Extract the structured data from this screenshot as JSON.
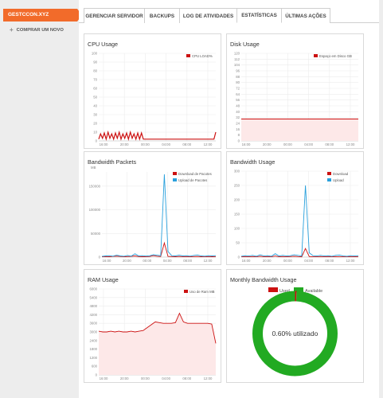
{
  "sidebar": {
    "domain": "GESTCCON.XYZ",
    "buy_label": "COMPRAR UM NOVO"
  },
  "tabs": [
    {
      "label": "GERENCIAR SERVIDOR"
    },
    {
      "label": "BACKUPS"
    },
    {
      "label": "LOG DE ATIVIDADES"
    },
    {
      "label": "ESTATÍSTICAS"
    },
    {
      "label": "ÚLTIMAS AÇÕES"
    }
  ],
  "active_tab": "ESTATÍSTICAS",
  "colors": {
    "accent": "#f26b2a",
    "red_series": "#cc1111",
    "blue_series": "#29a0dc",
    "used": "#cc1111",
    "available": "#22aa22"
  },
  "chart_data": [
    {
      "id": "cpu",
      "type": "line",
      "title": "CPU Usage",
      "legend": [
        "CPU LOAD%"
      ],
      "xticks": [
        "16:00",
        "20:00",
        "00:00",
        "04:00",
        "08:00",
        "12:00"
      ],
      "yticks": [
        "0",
        "10",
        "20",
        "30",
        "40",
        "50",
        "60",
        "70",
        "80",
        "90",
        "100"
      ],
      "ylim": [
        0,
        100
      ],
      "series": [
        {
          "name": "CPU LOAD%",
          "color": "#cc1111",
          "values": [
            2,
            8,
            3,
            9,
            2,
            10,
            3,
            8,
            2,
            9,
            3,
            10,
            2,
            8,
            3,
            9,
            2,
            10,
            3,
            8,
            2,
            9,
            2,
            9,
            2,
            2,
            2,
            2,
            2,
            2,
            2,
            2,
            2,
            2,
            2,
            2,
            2,
            2,
            2,
            2,
            2,
            2,
            2,
            2,
            2,
            2,
            2,
            2,
            2,
            2,
            2,
            2,
            2,
            2,
            2,
            2,
            2,
            2,
            2,
            2,
            2,
            2,
            2,
            10
          ]
        }
      ]
    },
    {
      "id": "disk",
      "type": "line",
      "title": "Disk Usage",
      "legend": [
        "Espaço em Disco GB"
      ],
      "xticks": [
        "16:00",
        "20:00",
        "00:00",
        "04:00",
        "08:00",
        "12:00"
      ],
      "yticks": [
        "0",
        "8",
        "16",
        "24",
        "32",
        "40",
        "48",
        "56",
        "64",
        "72",
        "80",
        "88",
        "96",
        "104",
        "112",
        "120"
      ],
      "ylim": [
        0,
        120
      ],
      "series": [
        {
          "name": "Espaço em Disco GB",
          "color": "#cc1111",
          "values": [
            30,
            30,
            30,
            30,
            30,
            30,
            30,
            30,
            30,
            30,
            30,
            30
          ]
        }
      ]
    },
    {
      "id": "bandwidth-packets",
      "type": "line",
      "title": "Bandwidth Packets",
      "ylabel": "MB",
      "legend": [
        "Download de Pacotes",
        "Upload de Pacotes"
      ],
      "xticks": [
        "16:00",
        "20:00",
        "00:00",
        "04:00",
        "08:00",
        "12:00"
      ],
      "yticks": [
        "0",
        "50000",
        "100000",
        "150000"
      ],
      "ylim": [
        0,
        180000
      ],
      "series": [
        {
          "name": "Download de Pacotes",
          "color": "#cc1111",
          "values": [
            800,
            1200,
            900,
            1500,
            2000,
            1300,
            900,
            1100,
            1600,
            2500,
            1200,
            900,
            1000,
            1400,
            3000,
            1800,
            1200,
            30000,
            1500,
            1100,
            900,
            1300,
            1000,
            1200,
            900,
            1100,
            1400,
            900,
            1000,
            1200,
            900,
            1100
          ]
        },
        {
          "name": "Upload de Pacotes",
          "color": "#29a0dc",
          "values": [
            1500,
            2500,
            3000,
            2000,
            4000,
            2500,
            1800,
            3500,
            2000,
            7000,
            2500,
            3000,
            2200,
            2800,
            5000,
            4000,
            3000,
            175000,
            12000,
            3000,
            2500,
            4000,
            2500,
            3000,
            2000,
            3500,
            4500,
            2500,
            2000,
            3000,
            2500,
            3000
          ]
        }
      ]
    },
    {
      "id": "bandwidth",
      "type": "line",
      "title": "Bandwidth Usage",
      "legend": [
        "Download",
        "Upload"
      ],
      "xticks": [
        "16:00",
        "20:00",
        "00:00",
        "04:00",
        "08:00",
        "12:00"
      ],
      "yticks": [
        "0",
        "50",
        "100",
        "150",
        "200",
        "250",
        "300"
      ],
      "ylim": [
        0,
        300
      ],
      "series": [
        {
          "name": "Download",
          "color": "#cc1111",
          "values": [
            1,
            2,
            1,
            2,
            1,
            3,
            1,
            2,
            1,
            4,
            1,
            2,
            1,
            2,
            3,
            2,
            1,
            30,
            2,
            1,
            1,
            2,
            1,
            2,
            1,
            2,
            1,
            1,
            2,
            1,
            1,
            2
          ]
        },
        {
          "name": "Upload",
          "color": "#29a0dc",
          "values": [
            3,
            5,
            4,
            6,
            3,
            8,
            4,
            5,
            3,
            12,
            4,
            6,
            4,
            5,
            8,
            6,
            4,
            250,
            15,
            5,
            4,
            6,
            4,
            5,
            3,
            6,
            7,
            4,
            3,
            5,
            4,
            5
          ]
        }
      ]
    },
    {
      "id": "ram",
      "type": "area",
      "title": "RAM Usage",
      "legend": [
        "Uso de Ram MB"
      ],
      "xticks": [
        "16:00",
        "20:00",
        "00:00",
        "04:00",
        "08:00",
        "12:00"
      ],
      "yticks": [
        "0",
        "600",
        "1200",
        "1800",
        "2400",
        "3000",
        "3600",
        "4200",
        "4800",
        "5400",
        "6000"
      ],
      "ylim": [
        0,
        6000
      ],
      "series": [
        {
          "name": "Uso de Ram MB",
          "color": "#cc1111",
          "values": [
            3050,
            3000,
            3000,
            3050,
            3000,
            3050,
            3000,
            3000,
            3050,
            3000,
            3050,
            3100,
            3300,
            3500,
            3700,
            3650,
            3600,
            3600,
            3600,
            3650,
            4300,
            3700,
            3600,
            3600,
            3600,
            3600,
            3600,
            3600,
            3550,
            2200
          ]
        }
      ]
    },
    {
      "id": "monthly-bandwidth",
      "type": "pie",
      "title": "Monthly Bandwidth Usage",
      "legend": [
        "Used",
        "Available"
      ],
      "center_label": "0.60% utilizado",
      "slices": [
        {
          "label": "Used",
          "value": 0.6,
          "color": "#cc1111"
        },
        {
          "label": "Available",
          "value": 99.4,
          "color": "#22aa22"
        }
      ]
    }
  ]
}
